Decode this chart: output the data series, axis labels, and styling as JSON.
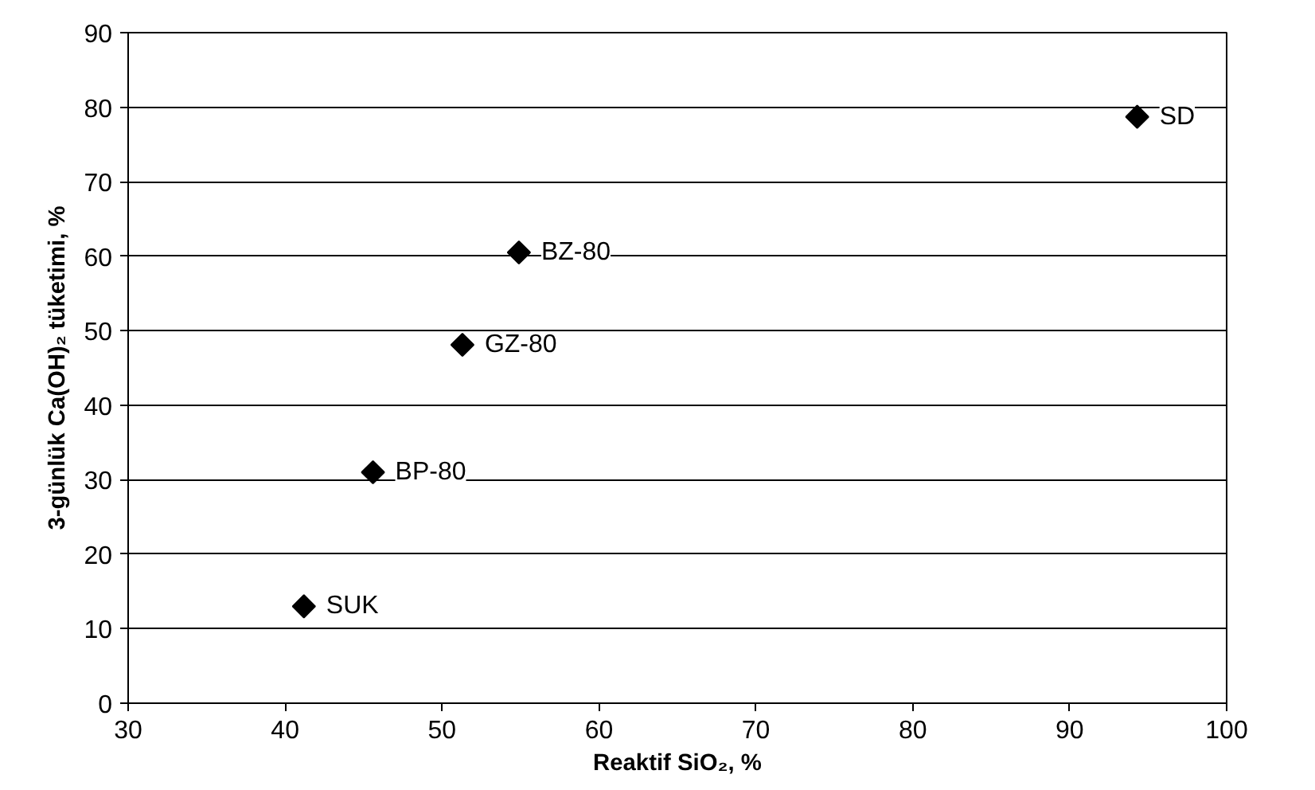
{
  "chart_data": {
    "type": "scatter",
    "xlabel": "Reaktif SiO₂, %",
    "ylabel": "3-günlük Ca(OH)₂ tüketimi, %",
    "x": [
      41.2,
      45.6,
      51.3,
      54.9,
      94.3
    ],
    "series": [
      {
        "color": "#000000",
        "values": [
          13,
          31,
          48.1,
          60.5,
          78.7
        ]
      }
    ],
    "annotations": [
      {
        "text": "SUK",
        "x": 41.2,
        "y": 13
      },
      {
        "text": "BP-80",
        "x": 45.6,
        "y": 31
      },
      {
        "text": "GZ-80",
        "x": 51.3,
        "y": 48.1
      },
      {
        "text": "BZ-80",
        "x": 54.9,
        "y": 60.5
      },
      {
        "text": "SD",
        "x": 94.3,
        "y": 78.7
      }
    ],
    "xlim": [
      30,
      100
    ],
    "xticks": [
      30,
      40,
      50,
      60,
      70,
      80,
      90,
      100
    ],
    "ylim": [
      0,
      90
    ],
    "yticks": [
      0,
      10,
      20,
      30,
      40,
      50,
      60,
      70,
      80,
      90
    ],
    "grid": "y",
    "marker": "diamond"
  }
}
